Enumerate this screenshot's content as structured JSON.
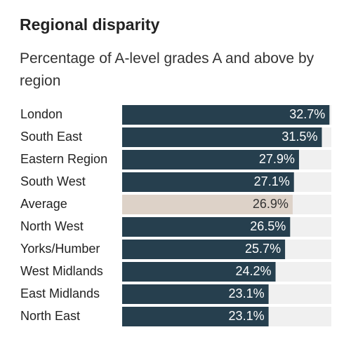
{
  "chart_data": {
    "type": "barh",
    "title": "Regional disparity",
    "subtitle": "Percentage of A-level grades A and above by region",
    "categories": [
      "London",
      "South East",
      "Eastern Region",
      "South West",
      "Average",
      "North West",
      "Yorks/Humber",
      "West Midlands",
      "East Midlands",
      "North East"
    ],
    "values": [
      32.7,
      31.5,
      27.9,
      27.1,
      26.9,
      26.5,
      25.7,
      24.2,
      23.1,
      23.1
    ],
    "value_labels": [
      "32.7%",
      "31.5%",
      "27.9%",
      "27.1%",
      "26.9%",
      "26.5%",
      "25.7%",
      "24.2%",
      "23.1%",
      "23.1%"
    ],
    "colors": [
      "#263f4e",
      "#263f4e",
      "#263f4e",
      "#263f4e",
      "#ddd2c8",
      "#263f4e",
      "#263f4e",
      "#263f4e",
      "#263f4e",
      "#263f4e"
    ],
    "label_colors": [
      "#ffffff",
      "#ffffff",
      "#ffffff",
      "#ffffff",
      "#333333",
      "#ffffff",
      "#ffffff",
      "#ffffff",
      "#ffffff",
      "#ffffff"
    ],
    "track_color": "#f0f0f0",
    "xlim": [
      0,
      33
    ]
  }
}
